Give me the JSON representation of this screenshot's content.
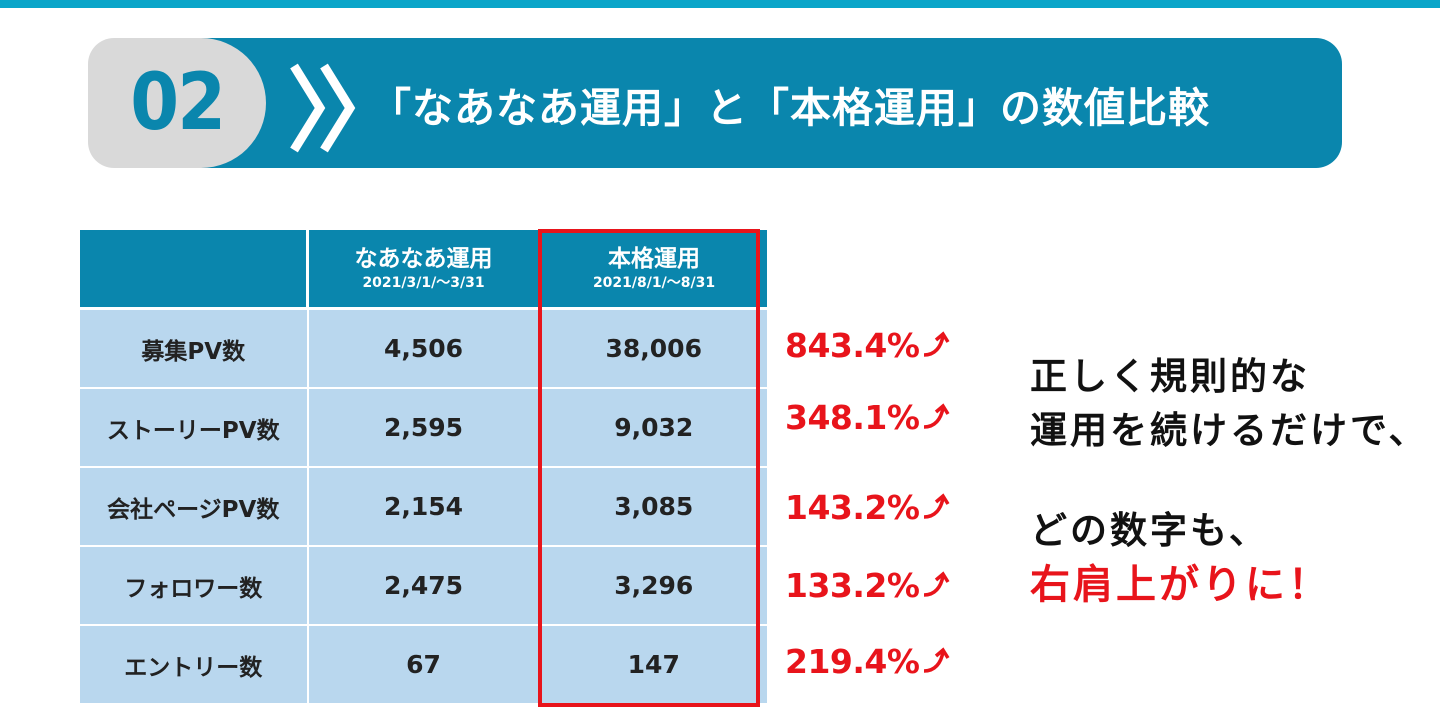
{
  "header": {
    "number": "02",
    "title": "「なあなあ運用」と「本格運用」の数値比較"
  },
  "table": {
    "columns": [
      {
        "label": "",
        "period": ""
      },
      {
        "label": "なあなあ運用",
        "period": "2021/3/1/〜3/31"
      },
      {
        "label": "本格運用",
        "period": "2021/8/1/〜8/31"
      }
    ],
    "rows": [
      {
        "label": "募集PV数",
        "before": "4,506",
        "after": "38,006"
      },
      {
        "label": "ストーリーPV数",
        "before": "2,595",
        "after": "9,032"
      },
      {
        "label": "会社ページPV数",
        "before": "2,154",
        "after": "3,085"
      },
      {
        "label": "フォロワー数",
        "before": "2,475",
        "after": "3,296"
      },
      {
        "label": "エントリー数",
        "before": "67",
        "after": "147"
      }
    ]
  },
  "growth": [
    "843.4%",
    "348.1%",
    "143.2%",
    "133.2%",
    "219.4%"
  ],
  "message": {
    "line1": "正しく規則的な",
    "line2": "運用を続けるだけで、",
    "line3": "どの数字も、",
    "line4": "右肩上がりに！"
  },
  "colors": {
    "brand": "#0a86ad",
    "accent": "#e8141b",
    "cell": "#b9d7ee",
    "tab": "#d9d9d9"
  }
}
